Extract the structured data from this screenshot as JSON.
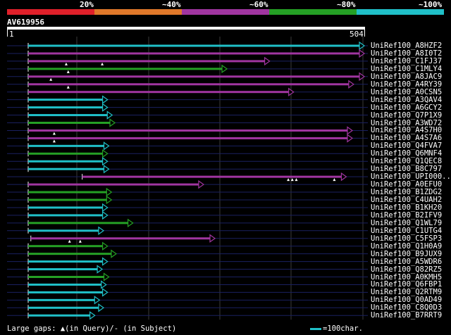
{
  "legend": {
    "pct_labels": [
      "20%",
      "~40%",
      "~60%",
      "~80%",
      "~100%"
    ],
    "colors": [
      "#e0202a",
      "#e0782a",
      "#a035a0",
      "#25a025",
      "#20c0c8"
    ]
  },
  "query": {
    "name": "AV619956",
    "start_label": "1",
    "end_label": "504",
    "length": 504
  },
  "footer": {
    "gaps_label": "Large gaps: ▲(in Query)/- (in Subject)",
    "scale_label": "=100char."
  },
  "hits": [
    {
      "name": "UniRef100_A8HZF2",
      "start": 0,
      "end": 504,
      "color": "cyan",
      "query_gaps": []
    },
    {
      "name": "UniRef100_A8I0T2",
      "start": 0,
      "end": 504,
      "color": "purple",
      "query_gaps": []
    },
    {
      "name": "UniRef100_C1FJ37",
      "start": 0,
      "end": 362,
      "color": "purple",
      "query_gaps": [
        57,
        111
      ]
    },
    {
      "name": "UniRef100_C1MLY4",
      "start": 0,
      "end": 298,
      "color": "green",
      "query_gaps": [
        60
      ]
    },
    {
      "name": "UniRef100_A8JAC9",
      "start": 0,
      "end": 504,
      "color": "purple",
      "query_gaps": [
        34
      ]
    },
    {
      "name": "UniRef100_A4RY39",
      "start": 0,
      "end": 488,
      "color": "purple",
      "query_gaps": [
        60
      ]
    },
    {
      "name": "UniRef100_A0CSN5",
      "start": 0,
      "end": 398,
      "color": "purple",
      "query_gaps": []
    },
    {
      "name": "UniRef100_A3QAV4",
      "start": 0,
      "end": 119,
      "color": "cyan",
      "query_gaps": []
    },
    {
      "name": "UniRef100_A6GCY2",
      "start": 0,
      "end": 119,
      "color": "cyan",
      "query_gaps": []
    },
    {
      "name": "UniRef100_Q7P1X9",
      "start": 0,
      "end": 126,
      "color": "cyan",
      "query_gaps": []
    },
    {
      "name": "UniRef100_A3WD72",
      "start": 0,
      "end": 130,
      "color": "green",
      "query_gaps": []
    },
    {
      "name": "UniRef100_A4S7H0",
      "start": 0,
      "end": 486,
      "color": "purple",
      "query_gaps": [
        39
      ]
    },
    {
      "name": "UniRef100_A4S7A6",
      "start": 0,
      "end": 486,
      "color": "purple",
      "query_gaps": [
        39
      ]
    },
    {
      "name": "UniRef100_Q4FVA7",
      "start": 0,
      "end": 121,
      "color": "cyan",
      "query_gaps": []
    },
    {
      "name": "UniRef100_Q6MNF4",
      "start": 0,
      "end": 119,
      "color": "green",
      "query_gaps": []
    },
    {
      "name": "UniRef100_Q1QEC8",
      "start": 0,
      "end": 119,
      "color": "cyan",
      "query_gaps": []
    },
    {
      "name": "UniRef100_B8C797",
      "start": 0,
      "end": 121,
      "color": "cyan",
      "query_gaps": []
    },
    {
      "name": "UniRef100_UPI000...",
      "start": 81,
      "end": 477,
      "color": "purple",
      "query_gaps": [
        390,
        396,
        402,
        459
      ]
    },
    {
      "name": "UniRef100_A0EFU0",
      "start": 0,
      "end": 263,
      "color": "purple",
      "query_gaps": []
    },
    {
      "name": "UniRef100_B1ZDG2",
      "start": 0,
      "end": 125,
      "color": "green",
      "query_gaps": []
    },
    {
      "name": "UniRef100_C4UAH2",
      "start": 0,
      "end": 125,
      "color": "green",
      "query_gaps": []
    },
    {
      "name": "UniRef100_B1KH20",
      "start": 0,
      "end": 119,
      "color": "cyan",
      "query_gaps": []
    },
    {
      "name": "UniRef100_B2IFV9",
      "start": 0,
      "end": 119,
      "color": "cyan",
      "query_gaps": []
    },
    {
      "name": "UniRef100_Q1WL79",
      "start": 0,
      "end": 157,
      "color": "green",
      "query_gaps": []
    },
    {
      "name": "UniRef100_C1UTG4",
      "start": 0,
      "end": 113,
      "color": "cyan",
      "query_gaps": []
    },
    {
      "name": "UniRef100_C5FSP3",
      "start": 4,
      "end": 280,
      "color": "purple",
      "query_gaps": [
        62,
        78
      ]
    },
    {
      "name": "UniRef100_Q1H0A9",
      "start": 0,
      "end": 119,
      "color": "green",
      "query_gaps": []
    },
    {
      "name": "UniRef100_B9JUX9",
      "start": 0,
      "end": 132,
      "color": "green",
      "query_gaps": []
    },
    {
      "name": "UniRef100_A5WDR6",
      "start": 0,
      "end": 119,
      "color": "cyan",
      "query_gaps": []
    },
    {
      "name": "UniRef100_Q82RZ5",
      "start": 0,
      "end": 111,
      "color": "cyan",
      "query_gaps": []
    },
    {
      "name": "UniRef100_A0KMH5",
      "start": 0,
      "end": 121,
      "color": "green",
      "query_gaps": []
    },
    {
      "name": "UniRef100_Q6FBP1",
      "start": 0,
      "end": 117,
      "color": "cyan",
      "query_gaps": []
    },
    {
      "name": "UniRef100_Q2RTM9",
      "start": 0,
      "end": 119,
      "color": "cyan",
      "query_gaps": []
    },
    {
      "name": "UniRef100_Q0AD49",
      "start": 0,
      "end": 107,
      "color": "cyan",
      "query_gaps": []
    },
    {
      "name": "UniRef100_C8Q0D3",
      "start": 0,
      "end": 113,
      "color": "cyan",
      "query_gaps": []
    },
    {
      "name": "UniRef100_B7RRT9",
      "start": 0,
      "end": 100,
      "color": "cyan",
      "query_gaps": []
    }
  ]
}
